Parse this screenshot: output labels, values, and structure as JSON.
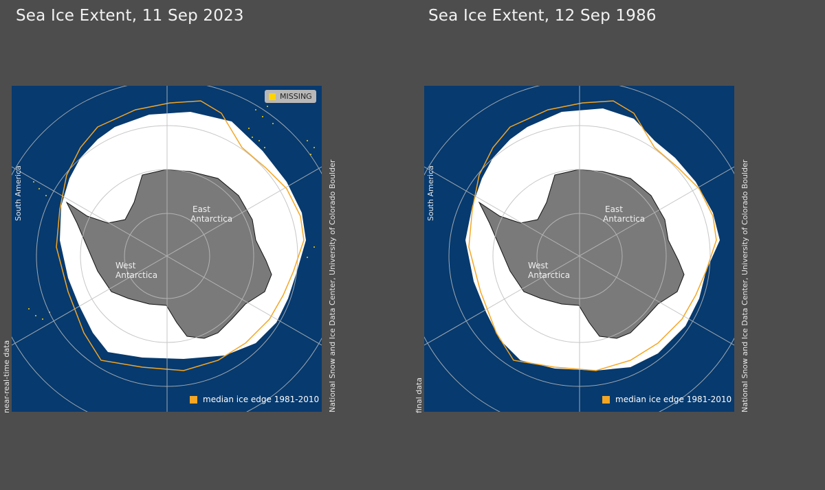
{
  "panels": [
    {
      "title": "Sea Ice Extent, 11 Sep 2023",
      "data_status": "near-real-time data",
      "credit": "National Snow and Ice Data Center, University of Colorado Boulder",
      "legend_missing": "MISSING",
      "legend_median": "median ice edge 1981-2010",
      "labels": {
        "south_america": "South America",
        "east_antarctica": [
          "East",
          "Antarctica"
        ],
        "west_antarctica": [
          "West",
          "Antarctica"
        ]
      }
    },
    {
      "title": "Sea Ice Extent, 12 Sep 1986",
      "data_status": "final data",
      "credit": "National Snow and Ice Data Center, University of Colorado Boulder",
      "legend_median": "median ice edge 1981-2010",
      "labels": {
        "south_america": "South America",
        "east_antarctica": [
          "East",
          "Antarctica"
        ],
        "west_antarctica": [
          "West",
          "Antarctica"
        ]
      }
    }
  ],
  "colors": {
    "ocean": "#073a6e",
    "ice": "#ffffff",
    "land": "#7a7a7a",
    "median_edge": "#f5a623",
    "missing": "#ffd400",
    "grid": "#bdbdbd"
  }
}
